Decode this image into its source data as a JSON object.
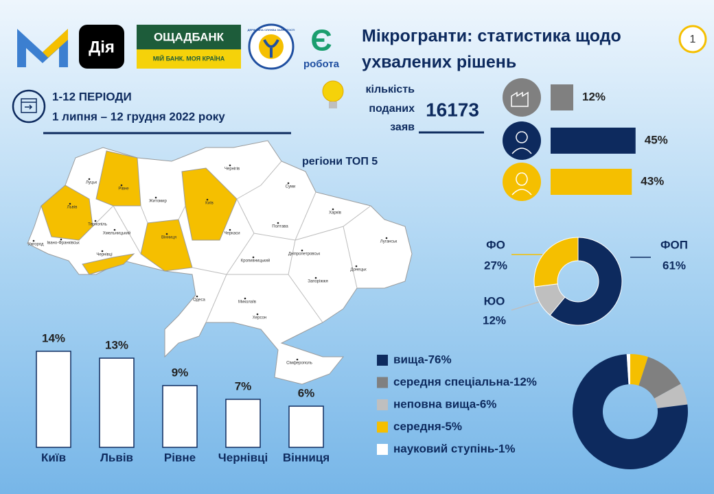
{
  "header": {
    "logos": {
      "diia": "Дія",
      "oschadbank": "ОЩАДБАНК",
      "oschadbank_slogan": "МІЙ БАНК. МОЯ КРАЇНА",
      "employment_service": "ДЕРЖАВНА СЛУЖБА ЗАЙНЯТОСТІ",
      "ye_robota_mark": "Є",
      "ye_robota": "робота"
    },
    "title_lines": [
      "Мікрогранти: статистика щодо",
      "ухвалених рішень"
    ],
    "page_number": "1"
  },
  "period": {
    "title": "1-12 ПЕРІОДИ",
    "dates": "1 липня – 12 грудня 2022 року"
  },
  "applications": {
    "label_lines": [
      "кількість",
      "поданих",
      "заяв"
    ],
    "value": 16173
  },
  "map": {
    "title": "регіони ТОП 5",
    "labels": [
      "Луцьк",
      "Рівне",
      "Житомир",
      "Київ",
      "Чернігів",
      "Суми",
      "Харків",
      "Полтава",
      "Черкаси",
      "Вінниця",
      "Хмельницький",
      "Тернопіль",
      "Львів",
      "Ужгород",
      "Івано-Франківськ",
      "Чернівці",
      "Кропивницький",
      "Дніпропетровськ",
      "Луганськ",
      "Донецьк",
      "Запоріжжя",
      "Миколаїв",
      "Одеса",
      "Херсон",
      "Сімферополь"
    ]
  },
  "chart_data": [
    {
      "type": "hbar",
      "categories": [
        null,
        null,
        null
      ],
      "values": [
        12,
        45,
        43
      ],
      "value_labels": [
        "12%",
        "45%",
        "43%"
      ],
      "colors": [
        "#808080",
        "#0d2a5e",
        "#f5bf00"
      ]
    },
    {
      "type": "bar",
      "categories": [
        "Київ",
        "Львів",
        "Рівне",
        "Чернівці",
        "Вінниця"
      ],
      "values": [
        14,
        13,
        9,
        7,
        6
      ],
      "value_labels": [
        "14%",
        "13%",
        "9%",
        "7%",
        "6%"
      ],
      "color": "#ffffff"
    },
    {
      "type": "donut",
      "categories": [
        "ФОП",
        "ФО",
        "ЮО"
      ],
      "values": [
        61,
        27,
        12
      ],
      "value_labels": [
        "61%",
        "27%",
        "12%"
      ],
      "colors": [
        "#0d2a5e",
        "#f5bf00",
        "#bfbfbf"
      ]
    },
    {
      "type": "donut",
      "categories": [
        "вища-76%",
        "середня спеціальна-12%",
        "неповна вища-6%",
        "середня-5%",
        "науковий ступінь-1%"
      ],
      "values": [
        76,
        12,
        6,
        5,
        1
      ],
      "colors": [
        "#0d2a5e",
        "#808080",
        "#bfbfbf",
        "#f5bf00",
        "#ffffff"
      ],
      "legend": "left"
    }
  ]
}
